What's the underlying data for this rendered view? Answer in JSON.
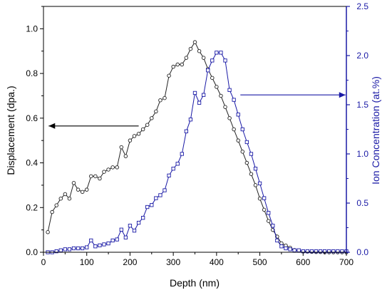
{
  "chart_data": {
    "type": "line",
    "title": "",
    "xlabel": "Depth (nm)",
    "ylabel_left": "Displacement (dpa.)",
    "ylabel_right": "Ion Concentration (at.%)",
    "xlim": [
      0,
      700
    ],
    "ylim_left": [
      0,
      1.1
    ],
    "ylim_right": [
      0,
      2.5
    ],
    "x_ticks": [
      0,
      100,
      200,
      300,
      400,
      500,
      600,
      700
    ],
    "x_tick_labels": [
      "0",
      "100",
      "200",
      "300",
      "400",
      "500",
      "600",
      "700"
    ],
    "y_left_ticks": [
      0,
      0.2,
      0.4,
      0.6,
      0.8,
      1.0
    ],
    "y_left_tick_labels": [
      "0.0",
      "0.2",
      "0.4",
      "0.6",
      "0.8",
      "1.0"
    ],
    "y_right_ticks": [
      0,
      0.5,
      1.0,
      1.5,
      2.0,
      2.5
    ],
    "y_right_tick_labels": [
      "0.0",
      "0.5",
      "1.0",
      "1.5",
      "2.0",
      "2.5"
    ],
    "grid": false,
    "colors": {
      "left_axis": "#000000",
      "right_axis": "#1a1aa6",
      "series_left": "#222222",
      "series_right": "#1a1aa6",
      "arrow_left": "#000000",
      "arrow_right": "#1a1aa6"
    },
    "series": [
      {
        "axis": "left",
        "marker": "circle",
        "x": [
          10,
          20,
          30,
          40,
          50,
          60,
          70,
          80,
          90,
          100,
          110,
          120,
          130,
          140,
          150,
          160,
          170,
          180,
          190,
          200,
          210,
          220,
          230,
          240,
          250,
          260,
          270,
          280,
          290,
          300,
          310,
          320,
          330,
          340,
          350,
          360,
          370,
          380,
          390,
          400,
          410,
          420,
          430,
          440,
          450,
          460,
          470,
          480,
          490,
          500,
          510,
          520,
          530,
          540,
          550,
          560,
          570,
          580,
          590,
          600,
          610,
          620,
          630,
          640,
          650,
          660,
          670,
          680,
          690,
          700
        ],
        "values": [
          0.09,
          0.18,
          0.21,
          0.24,
          0.26,
          0.24,
          0.31,
          0.28,
          0.27,
          0.28,
          0.34,
          0.34,
          0.33,
          0.36,
          0.37,
          0.38,
          0.38,
          0.47,
          0.43,
          0.5,
          0.52,
          0.53,
          0.55,
          0.57,
          0.6,
          0.63,
          0.68,
          0.69,
          0.79,
          0.83,
          0.84,
          0.84,
          0.87,
          0.91,
          0.94,
          0.9,
          0.87,
          0.82,
          0.78,
          0.74,
          0.7,
          0.65,
          0.6,
          0.55,
          0.5,
          0.45,
          0.4,
          0.35,
          0.3,
          0.24,
          0.19,
          0.14,
          0.1,
          0.07,
          0.04,
          0.03,
          0.02,
          0.01,
          0.007,
          0.004,
          0.003,
          0.002,
          0.001,
          0.001,
          0.0,
          0.0,
          0.0,
          0.0,
          0.0,
          0.0
        ]
      },
      {
        "axis": "right",
        "marker": "square",
        "x": [
          10,
          20,
          30,
          40,
          50,
          60,
          70,
          80,
          90,
          100,
          110,
          120,
          130,
          140,
          150,
          160,
          170,
          180,
          190,
          200,
          210,
          220,
          230,
          240,
          250,
          260,
          270,
          280,
          290,
          300,
          310,
          320,
          330,
          340,
          350,
          360,
          370,
          380,
          390,
          400,
          410,
          420,
          430,
          440,
          450,
          460,
          470,
          480,
          490,
          500,
          510,
          520,
          530,
          540,
          550,
          560,
          570,
          580,
          590,
          600,
          610,
          620,
          630,
          640,
          650,
          660,
          670,
          680,
          690,
          700
        ],
        "values": [
          0.0,
          0.0,
          0.01,
          0.02,
          0.03,
          0.03,
          0.04,
          0.04,
          0.04,
          0.05,
          0.12,
          0.06,
          0.07,
          0.08,
          0.09,
          0.12,
          0.13,
          0.23,
          0.15,
          0.27,
          0.22,
          0.3,
          0.35,
          0.46,
          0.48,
          0.55,
          0.58,
          0.63,
          0.78,
          0.85,
          0.9,
          1.0,
          1.23,
          1.35,
          1.62,
          1.52,
          1.6,
          1.85,
          1.95,
          2.03,
          2.03,
          1.95,
          1.65,
          1.55,
          1.4,
          1.25,
          1.12,
          1.0,
          0.85,
          0.7,
          0.55,
          0.4,
          0.27,
          0.12,
          0.06,
          0.04,
          0.03,
          0.02,
          0.02,
          0.01,
          0.01,
          0.01,
          0.01,
          0.01,
          0.01,
          0.01,
          0.01,
          0.01,
          0.01,
          0.01
        ]
      }
    ],
    "annotations": [
      {
        "type": "arrow",
        "points_to": "left-axis",
        "from": [
          220,
          0.565
        ],
        "to": [
          12,
          0.565
        ],
        "axis": "left"
      },
      {
        "type": "arrow",
        "points_to": "right-axis",
        "from": [
          455,
          1.6
        ],
        "to": [
          698,
          1.6
        ],
        "axis": "right"
      }
    ]
  }
}
